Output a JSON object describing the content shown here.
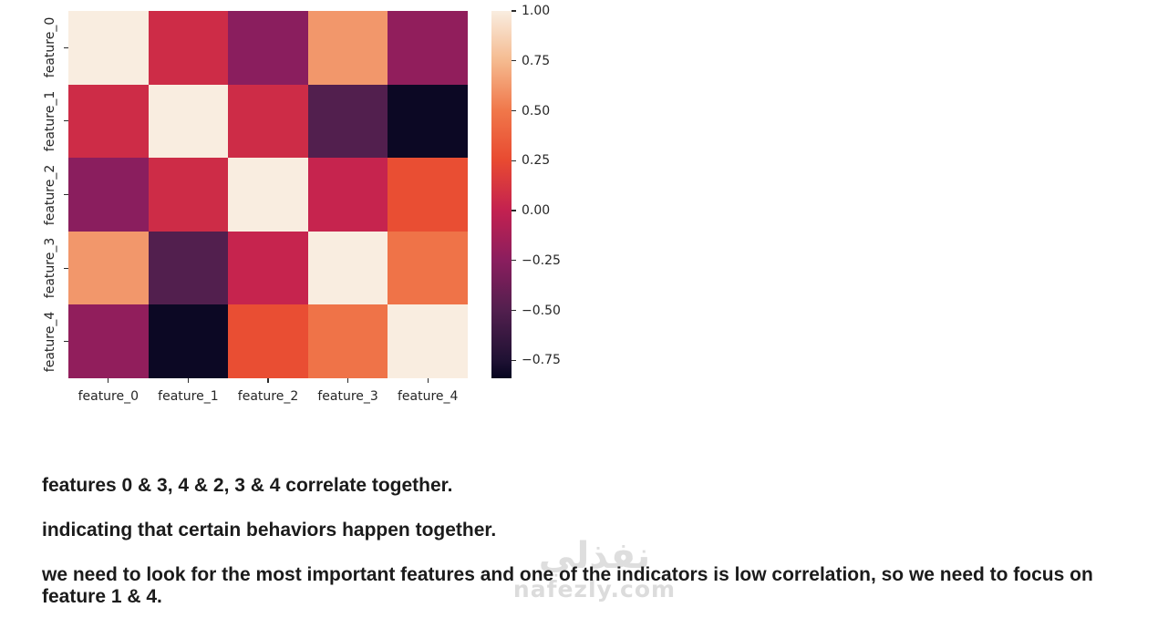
{
  "chart_data": {
    "type": "heatmap",
    "title": "",
    "xlabel": "",
    "ylabel": "",
    "grid": false,
    "legend_position": "right-colorbar",
    "categories": [
      "feature_0",
      "feature_1",
      "feature_2",
      "feature_3",
      "feature_4"
    ],
    "matrix": [
      [
        1.0,
        0.07,
        -0.25,
        0.62,
        -0.22
      ],
      [
        0.07,
        1.0,
        0.07,
        -0.5,
        -0.82
      ],
      [
        -0.25,
        0.07,
        1.0,
        0.02,
        0.27
      ],
      [
        0.62,
        -0.5,
        0.02,
        1.0,
        0.48
      ],
      [
        -0.22,
        -0.82,
        0.27,
        0.48,
        1.0
      ]
    ],
    "vmin": -0.84,
    "vmax": 1.0,
    "colorbar_ticks": [
      {
        "value": 1.0,
        "label": "1.00"
      },
      {
        "value": 0.75,
        "label": "0.75"
      },
      {
        "value": 0.5,
        "label": "0.50"
      },
      {
        "value": 0.25,
        "label": "0.25"
      },
      {
        "value": 0.0,
        "label": "0.00"
      },
      {
        "value": -0.25,
        "label": "−0.25"
      },
      {
        "value": -0.5,
        "label": "−0.50"
      },
      {
        "value": -0.75,
        "label": "−0.75"
      }
    ],
    "colormap_name": "rocket",
    "colormap_stops": [
      {
        "value": -0.84,
        "hex": "#060520"
      },
      {
        "value": -0.75,
        "hex": "#1f1133"
      },
      {
        "value": -0.5,
        "hex": "#521f4e"
      },
      {
        "value": -0.25,
        "hex": "#8a1e5e"
      },
      {
        "value": 0.0,
        "hex": "#c32150"
      },
      {
        "value": 0.25,
        "hex": "#e84a31"
      },
      {
        "value": 0.5,
        "hex": "#f0774a"
      },
      {
        "value": 0.75,
        "hex": "#f5ba8f"
      },
      {
        "value": 1.0,
        "hex": "#f9ede0"
      }
    ],
    "tick_label_color": "#262626"
  },
  "notes": {
    "line1": "features 0 & 3, 4 & 2, 3 & 4 correlate together.",
    "line2": "indicating that certain behaviors happen together.",
    "line3": "we need to look for the most important features and one of the indicators is low correlation, so we need to focus on feature 1 & 4."
  },
  "watermark": {
    "arabic": "نفذلي",
    "domain": "nafezly.com",
    "color": "#dedede"
  }
}
